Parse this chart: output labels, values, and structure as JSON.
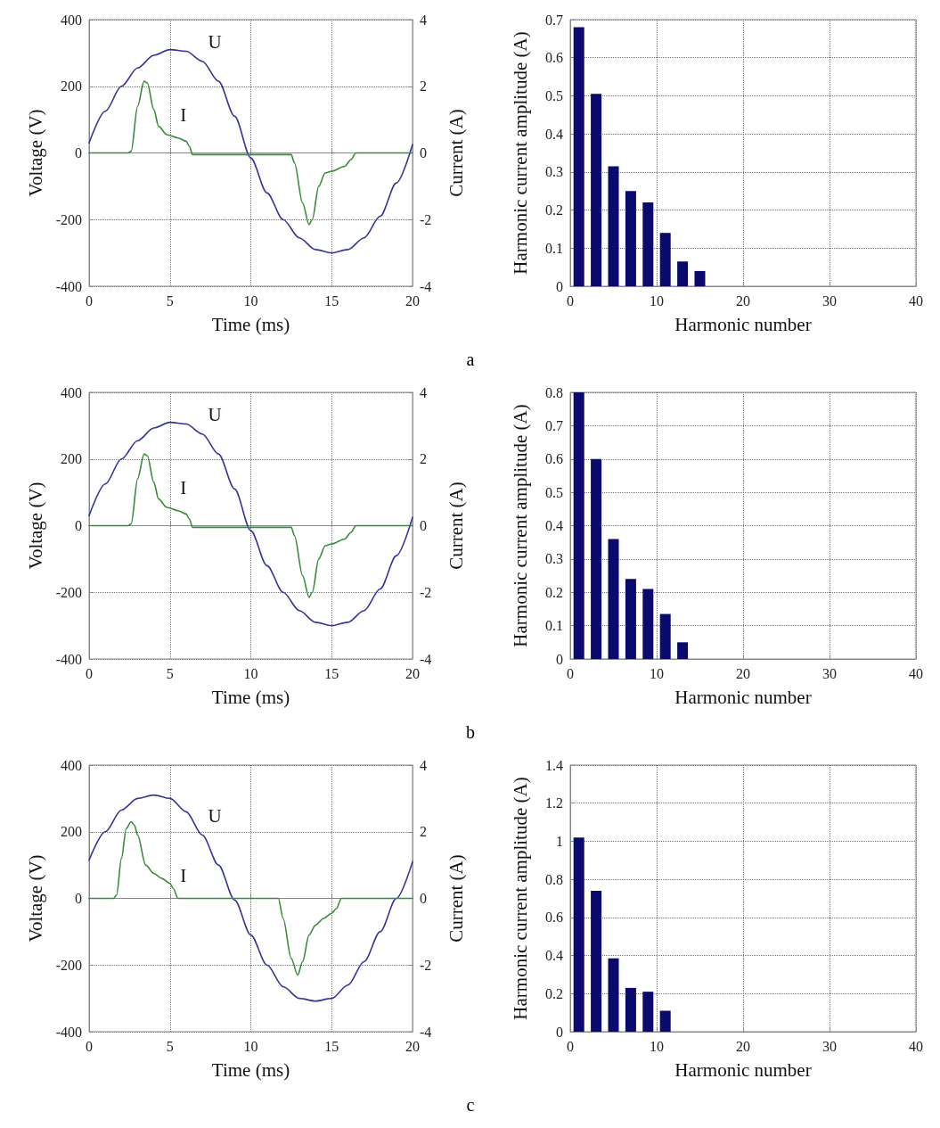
{
  "chart_data": [
    {
      "type": "line",
      "xlabel": "Time (ms)",
      "ylabel": "Voltage (V)",
      "y2label": "Current (A)",
      "xlim": [
        0,
        20
      ],
      "xticks": [
        0,
        5,
        10,
        15,
        20
      ],
      "ylim": [
        -400,
        400
      ],
      "yticks": [
        -400,
        -200,
        0,
        200,
        400
      ],
      "y2lim": [
        -4,
        4
      ],
      "y2ticks": [
        -4,
        -2,
        0,
        2,
        4
      ],
      "grid": true,
      "annotations": [
        "a"
      ],
      "series": [
        {
          "name": "U",
          "color": "#34349a",
          "x": [
            0,
            1,
            2,
            3,
            4,
            5,
            6,
            7,
            8,
            9,
            10,
            11,
            12,
            13,
            14,
            15,
            16,
            17,
            18,
            19,
            20
          ],
          "values": [
            30,
            125,
            200,
            255,
            293,
            310,
            305,
            275,
            215,
            110,
            -15,
            -120,
            -200,
            -255,
            -290,
            -300,
            -290,
            -255,
            -190,
            -90,
            25
          ]
        },
        {
          "name": "I",
          "color": "#3a8a3a",
          "axis": "y2",
          "x": [
            0,
            1,
            2,
            2.4,
            2.6,
            3.0,
            3.4,
            3.6,
            4.0,
            4.3,
            4.8,
            5.5,
            6.0,
            6.2,
            6.4,
            7,
            10,
            12.5,
            12.7,
            13.2,
            13.6,
            13.8,
            14.2,
            14.6,
            15,
            15.8,
            16.2,
            16.5,
            18,
            20
          ],
          "values": [
            0,
            0,
            0,
            0,
            0.05,
            1.4,
            2.15,
            2.1,
            1.3,
            0.8,
            0.55,
            0.45,
            0.35,
            0.2,
            -0.05,
            -0.05,
            -0.05,
            -0.05,
            -0.3,
            -1.5,
            -2.15,
            -2.0,
            -1.0,
            -0.6,
            -0.55,
            -0.4,
            -0.2,
            0,
            0,
            0
          ]
        }
      ]
    },
    {
      "type": "bar",
      "xlabel": "Harmonic number",
      "ylabel": "Harmonic current amplitude (A)",
      "xlim": [
        0,
        40
      ],
      "xticks": [
        0,
        10,
        20,
        30,
        40
      ],
      "ylim": [
        0,
        0.7
      ],
      "yticks": [
        0,
        0.1,
        0.2,
        0.3,
        0.4,
        0.5,
        0.6,
        0.7
      ],
      "grid": true,
      "color": "#0a0a6e",
      "x": [
        1,
        3,
        5,
        7,
        9,
        11,
        13,
        15
      ],
      "values": [
        0.68,
        0.505,
        0.315,
        0.25,
        0.22,
        0.14,
        0.065,
        0.04
      ]
    },
    {
      "type": "line",
      "xlabel": "Time (ms)",
      "ylabel": "Voltage (V)",
      "y2label": "Current (A)",
      "xlim": [
        0,
        20
      ],
      "xticks": [
        0,
        5,
        10,
        15,
        20
      ],
      "ylim": [
        -400,
        400
      ],
      "yticks": [
        -400,
        -200,
        0,
        200,
        400
      ],
      "y2lim": [
        -4,
        4
      ],
      "y2ticks": [
        -4,
        -2,
        0,
        2,
        4
      ],
      "grid": true,
      "annotations": [
        "b"
      ],
      "series": [
        {
          "name": "U",
          "color": "#34349a",
          "x": [
            0,
            1,
            2,
            3,
            4,
            5,
            6,
            7,
            8,
            9,
            10,
            11,
            12,
            13,
            14,
            15,
            16,
            17,
            18,
            19,
            20
          ],
          "values": [
            30,
            125,
            200,
            255,
            293,
            310,
            305,
            275,
            215,
            110,
            -15,
            -120,
            -200,
            -255,
            -290,
            -300,
            -290,
            -255,
            -190,
            -90,
            25
          ]
        },
        {
          "name": "I",
          "color": "#3a8a3a",
          "axis": "y2",
          "x": [
            0,
            1,
            2,
            2.4,
            2.6,
            3.0,
            3.4,
            3.6,
            4.0,
            4.3,
            4.8,
            5.5,
            6.0,
            6.2,
            6.4,
            7,
            10,
            12.5,
            12.7,
            13.2,
            13.6,
            13.8,
            14.2,
            14.6,
            15,
            15.8,
            16.2,
            16.5,
            18,
            20
          ],
          "values": [
            0,
            0,
            0,
            0,
            0.05,
            1.4,
            2.15,
            2.1,
            1.3,
            0.8,
            0.55,
            0.45,
            0.35,
            0.2,
            -0.05,
            -0.05,
            -0.05,
            -0.05,
            -0.3,
            -1.5,
            -2.15,
            -2.0,
            -1.0,
            -0.6,
            -0.55,
            -0.4,
            -0.2,
            0,
            0,
            0
          ]
        }
      ]
    },
    {
      "type": "bar",
      "xlabel": "Harmonic number",
      "ylabel": "Harmonic current amplitude (A)",
      "xlim": [
        0,
        40
      ],
      "xticks": [
        0,
        10,
        20,
        30,
        40
      ],
      "ylim": [
        0,
        0.8
      ],
      "yticks": [
        0,
        0.1,
        0.2,
        0.3,
        0.4,
        0.5,
        0.6,
        0.7,
        0.8
      ],
      "grid": true,
      "color": "#0a0a6e",
      "x": [
        1,
        3,
        5,
        7,
        9,
        11,
        13
      ],
      "values": [
        0.8,
        0.6,
        0.36,
        0.24,
        0.21,
        0.135,
        0.05
      ]
    },
    {
      "type": "line",
      "xlabel": "Time (ms)",
      "ylabel": "Voltage (V)",
      "y2label": "Current (A)",
      "xlim": [
        0,
        20
      ],
      "xticks": [
        0,
        5,
        10,
        15,
        20
      ],
      "ylim": [
        -400,
        400
      ],
      "yticks": [
        -400,
        -200,
        0,
        200,
        400
      ],
      "y2lim": [
        -4,
        4
      ],
      "y2ticks": [
        -4,
        -2,
        0,
        2,
        4
      ],
      "grid": true,
      "annotations": [
        "c"
      ],
      "series": [
        {
          "name": "U",
          "color": "#34349a",
          "x": [
            0,
            1,
            2,
            3,
            4,
            5,
            6,
            7,
            8,
            9,
            10,
            11,
            12,
            13,
            14,
            15,
            16,
            17,
            18,
            19,
            20
          ],
          "values": [
            115,
            200,
            265,
            300,
            310,
            300,
            260,
            190,
            100,
            -5,
            -110,
            -200,
            -265,
            -300,
            -308,
            -300,
            -260,
            -190,
            -100,
            0,
            110
          ]
        },
        {
          "name": "I",
          "color": "#3a8a3a",
          "axis": "y2",
          "x": [
            0,
            1,
            1.5,
            1.7,
            2.0,
            2.3,
            2.6,
            2.8,
            3.0,
            3.5,
            4.0,
            4.5,
            5.0,
            5.2,
            5.5,
            8,
            11.7,
            12.0,
            12.5,
            12.9,
            13.2,
            13.6,
            14.0,
            14.5,
            15.0,
            15.3,
            15.6,
            18,
            20
          ],
          "values": [
            0,
            0,
            0,
            0.1,
            1.2,
            2.1,
            2.3,
            2.2,
            1.9,
            1.0,
            0.75,
            0.6,
            0.45,
            0.3,
            0,
            0,
            0,
            -0.6,
            -1.8,
            -2.3,
            -1.9,
            -1.1,
            -0.8,
            -0.6,
            -0.45,
            -0.3,
            0,
            0,
            0
          ]
        }
      ]
    },
    {
      "type": "bar",
      "xlabel": "Harmonic number",
      "ylabel": "Harmonic current amplitude (A)",
      "xlim": [
        0,
        40
      ],
      "xticks": [
        0,
        10,
        20,
        30,
        40
      ],
      "ylim": [
        0,
        1.4
      ],
      "yticks": [
        0,
        0.2,
        0.4,
        0.6,
        0.8,
        1,
        1.2,
        1.4
      ],
      "grid": true,
      "color": "#0a0a6e",
      "x": [
        1,
        3,
        5,
        7,
        9,
        11
      ],
      "values": [
        1.02,
        0.74,
        0.385,
        0.23,
        0.21,
        0.11
      ]
    }
  ]
}
